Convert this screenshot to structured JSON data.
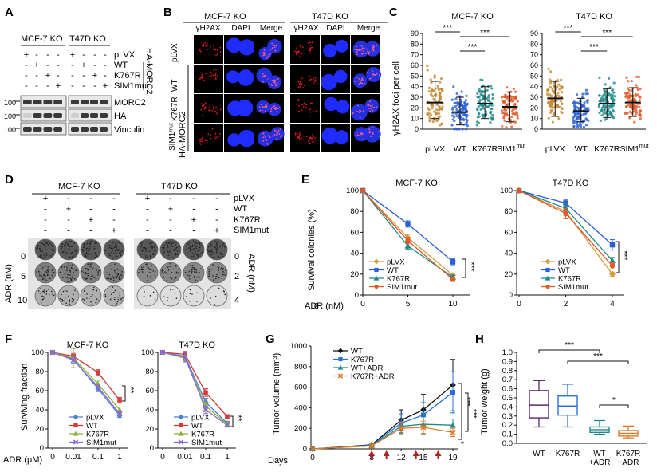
{
  "panels": {
    "A": {
      "letter": "A",
      "groups": [
        "MCF-7 KO",
        "T47D KO"
      ],
      "rows": [
        "pLVX",
        "WT",
        "K767R",
        "SIM1mut"
      ],
      "signs": [
        [
          "+",
          "-",
          "-",
          "-",
          "+",
          "-",
          "-",
          "-"
        ],
        [
          "-",
          "+",
          "-",
          "-",
          "-",
          "+",
          "-",
          "-"
        ],
        [
          "-",
          "-",
          "+",
          "-",
          "-",
          "-",
          "+",
          "-"
        ],
        [
          "-",
          "-",
          "-",
          "+",
          "-",
          "-",
          "-",
          "+"
        ]
      ],
      "bracket_label": "HA-MORC2",
      "blots": [
        "MORC2",
        "HA",
        "Vinculin"
      ],
      "mw": [
        "100",
        "100",
        "100"
      ]
    },
    "B": {
      "letter": "B",
      "groups": [
        "MCF-7 KO",
        "T47D KO"
      ],
      "channels": [
        "γH2AX",
        "DAPI",
        "Merge",
        "γH2AX",
        "DAPI",
        "Merge"
      ],
      "rows": [
        "pLVX",
        "WT",
        "K767R",
        "SIM1mut"
      ],
      "bracket_label": "HA-MORC2"
    },
    "C": {
      "letter": "C",
      "ylabel": "γH2AX foci per cell",
      "subplots": [
        {
          "title": "MCF-7 KO",
          "categories": [
            "pLVX",
            "WT",
            "K767R",
            "SIM1mut"
          ],
          "sig": [
            "***",
            "***",
            "***"
          ]
        },
        {
          "title": "T47D KO",
          "categories": [
            "pLVX",
            "WT",
            "K767R",
            "SIM1mut"
          ],
          "sig": [
            "***",
            "***",
            "***"
          ]
        }
      ],
      "yticks": [
        "0",
        "10",
        "20",
        "30",
        "40",
        "50",
        "60",
        "70",
        "80",
        "90"
      ]
    },
    "D": {
      "letter": "D",
      "groups": [
        "MCF-7 KO",
        "T47D KO"
      ],
      "rows": [
        "pLVX",
        "WT",
        "K767R",
        "SIM1mut"
      ],
      "signs": [
        [
          "+",
          "-",
          "-",
          "-",
          "+",
          "-",
          "-",
          "-"
        ],
        [
          "-",
          "+",
          "-",
          "-",
          "-",
          "+",
          "-",
          "-"
        ],
        [
          "-",
          "-",
          "+",
          "-",
          "-",
          "-",
          "+",
          "-"
        ],
        [
          "-",
          "-",
          "-",
          "+",
          "-",
          "-",
          "-",
          "+"
        ]
      ],
      "left_label": "ADR (nM)",
      "right_label": "ADR (nM)",
      "left_doses": [
        "0",
        "5",
        "10"
      ],
      "right_doses": [
        "0",
        "2",
        "4"
      ]
    },
    "E": {
      "letter": "E",
      "xlabel": "ADR (nM)",
      "ylabel": "Survival colonies (%)",
      "sig": "***"
    },
    "F": {
      "letter": "F",
      "xlabel": "ADR (μM)",
      "ylabel": "Surviving fraction",
      "sig": "**"
    },
    "G": {
      "letter": "G",
      "ylabel": "Tumor volume (mm³)",
      "xlabel": "Days",
      "sig": [
        "***",
        "***",
        "*"
      ]
    },
    "H": {
      "letter": "H",
      "ylabel": "Tumor weight (g)",
      "categories": [
        "WT",
        "K767R",
        "WT\n+ADR",
        "K767R\n+ADR"
      ],
      "sig": [
        "***",
        "***",
        "*"
      ]
    }
  },
  "chart_data": [
    {
      "id": "C-left",
      "type": "scatter",
      "title": "MCF-7 KO",
      "ylabel": "γH2AX foci per cell",
      "categories": [
        "pLVX",
        "WT",
        "K767R",
        "SIM1mut"
      ],
      "mean": [
        25,
        16,
        24,
        21
      ],
      "sd_low": [
        10,
        4,
        10,
        7
      ],
      "sd_high": [
        45,
        30,
        40,
        35
      ],
      "range": [
        [
          0,
          88
        ],
        [
          0,
          60
        ],
        [
          2,
          73
        ],
        [
          0,
          58
        ]
      ],
      "ylim": [
        0,
        90
      ],
      "colors": [
        "#c88a33",
        "#2b5fd6",
        "#1e8a8a",
        "#e05a28"
      ]
    },
    {
      "id": "C-right",
      "type": "scatter",
      "title": "T47D KO",
      "categories": [
        "pLVX",
        "WT",
        "K767R",
        "SIM1mut"
      ],
      "mean": [
        29,
        17,
        24,
        25
      ],
      "sd_low": [
        12,
        7,
        11,
        12
      ],
      "sd_high": [
        45,
        29,
        38,
        39
      ],
      "range": [
        [
          3,
          72
        ],
        [
          2,
          62
        ],
        [
          2,
          72
        ],
        [
          3,
          66
        ]
      ],
      "ylim": [
        0,
        90
      ],
      "colors": [
        "#c88a33",
        "#2b5fd6",
        "#1e8a8a",
        "#e05a28"
      ]
    },
    {
      "id": "E-left",
      "type": "line",
      "title": "MCF-7 KO",
      "xlabel": "ADR (nM)",
      "ylabel": "Survival colonies (%)",
      "x": [
        0,
        5,
        10
      ],
      "xlim": [
        0,
        10
      ],
      "ylim": [
        0,
        100
      ],
      "xticks": [
        0,
        5,
        10
      ],
      "yticks": [
        0,
        20,
        40,
        60,
        80,
        100
      ],
      "series": [
        {
          "name": "pLVX",
          "values": [
            100,
            55,
            19
          ],
          "err": [
            1,
            3,
            2
          ],
          "color": "#d69a3a",
          "marker": "diamond"
        },
        {
          "name": "WT",
          "values": [
            100,
            68,
            32
          ],
          "err": [
            1,
            3,
            3
          ],
          "color": "#2b5fd6",
          "marker": "square"
        },
        {
          "name": "K767R",
          "values": [
            100,
            47,
            17
          ],
          "err": [
            1,
            3,
            2
          ],
          "color": "#1e8a8a",
          "marker": "triangle"
        },
        {
          "name": "SIM1mut",
          "values": [
            100,
            52,
            15
          ],
          "err": [
            1,
            3,
            2
          ],
          "color": "#e05a28",
          "marker": "circle"
        }
      ]
    },
    {
      "id": "E-right",
      "type": "line",
      "title": "T47D KO",
      "x": [
        0,
        2,
        4
      ],
      "xlim": [
        0,
        4
      ],
      "ylim": [
        0,
        100
      ],
      "xticks": [
        0,
        2,
        4
      ],
      "yticks": [
        0,
        20,
        40,
        60,
        80,
        100
      ],
      "series": [
        {
          "name": "pLVX",
          "values": [
            100,
            80,
            20
          ],
          "err": [
            1,
            4,
            2
          ],
          "color": "#d69a3a",
          "marker": "diamond"
        },
        {
          "name": "WT",
          "values": [
            100,
            88,
            48
          ],
          "err": [
            1,
            3,
            5
          ],
          "color": "#2b5fd6",
          "marker": "square"
        },
        {
          "name": "K767R",
          "values": [
            100,
            83,
            33
          ],
          "err": [
            1,
            4,
            3
          ],
          "color": "#1e8a8a",
          "marker": "triangle"
        },
        {
          "name": "SIM1mut",
          "values": [
            100,
            78,
            28
          ],
          "err": [
            1,
            5,
            3
          ],
          "color": "#e05a28",
          "marker": "circle"
        }
      ]
    },
    {
      "id": "F-left",
      "type": "line",
      "title": "MCF-7 KO",
      "xlabel": "ADR (μM)",
      "ylabel": "Surviving fraction",
      "x": [
        "0",
        "0.01",
        "0.1",
        "1"
      ],
      "ylim": [
        0,
        100
      ],
      "yticks": [
        0,
        20,
        40,
        60,
        80,
        100
      ],
      "series": [
        {
          "name": "pLVX",
          "values": [
            100,
            93,
            62,
            34
          ],
          "err": [
            1,
            4,
            3,
            2
          ],
          "color": "#4a7fd0",
          "marker": "diamond"
        },
        {
          "name": "WT",
          "values": [
            100,
            96,
            79,
            50
          ],
          "err": [
            1,
            3,
            3,
            3
          ],
          "color": "#d23a3a",
          "marker": "square"
        },
        {
          "name": "K767R",
          "values": [
            100,
            94,
            67,
            40
          ],
          "err": [
            1,
            10,
            3,
            3
          ],
          "color": "#8ab03a",
          "marker": "triangle"
        },
        {
          "name": "SIM1mut",
          "values": [
            100,
            92,
            64,
            36
          ],
          "err": [
            1,
            4,
            3,
            2
          ],
          "color": "#8a6ad0",
          "marker": "x"
        }
      ]
    },
    {
      "id": "F-right",
      "type": "line",
      "title": "T47D KO",
      "x": [
        "0",
        "0.01",
        "0.1",
        "1"
      ],
      "ylim": [
        0,
        100
      ],
      "yticks": [
        0,
        20,
        40,
        60,
        80,
        100
      ],
      "series": [
        {
          "name": "pLVX",
          "values": [
            100,
            96,
            48,
            26
          ],
          "err": [
            1,
            5,
            4,
            2
          ],
          "color": "#4a7fd0",
          "marker": "diamond"
        },
        {
          "name": "WT",
          "values": [
            100,
            98,
            58,
            33
          ],
          "err": [
            1,
            3,
            4,
            2
          ],
          "color": "#d23a3a",
          "marker": "square"
        },
        {
          "name": "K767R",
          "values": [
            100,
            94,
            44,
            25
          ],
          "err": [
            1,
            3,
            4,
            2
          ],
          "color": "#8ab03a",
          "marker": "triangle"
        },
        {
          "name": "SIM1mut",
          "values": [
            100,
            95,
            40,
            24
          ],
          "err": [
            1,
            5,
            4,
            2
          ],
          "color": "#8a6ad0",
          "marker": "x"
        }
      ]
    },
    {
      "id": "G",
      "type": "line",
      "xlabel": "Days",
      "ylabel": "Tumor volume (mm³)",
      "x": [
        0,
        8,
        12,
        15,
        19
      ],
      "xlim": [
        0,
        19
      ],
      "ylim": [
        0,
        1000
      ],
      "xticks": [
        0,
        8,
        12,
        15,
        19
      ],
      "yticks": [
        0,
        200,
        400,
        600,
        800,
        1000
      ],
      "treatment_days": [
        8,
        10,
        14,
        17
      ],
      "series": [
        {
          "name": "WT",
          "values": [
            0,
            40,
            280,
            380,
            620
          ],
          "err": [
            0,
            15,
            100,
            150,
            250
          ],
          "color": "#111111",
          "marker": "diamond"
        },
        {
          "name": "K767R",
          "values": [
            0,
            35,
            250,
            330,
            550
          ],
          "err": [
            0,
            15,
            90,
            120,
            200
          ],
          "color": "#2b6fd6",
          "marker": "square"
        },
        {
          "name": "WT+ADR",
          "values": [
            0,
            30,
            220,
            240,
            230
          ],
          "err": [
            0,
            15,
            70,
            100,
            60
          ],
          "color": "#1e8a8a",
          "marker": "triangle"
        },
        {
          "name": "K767R+ADR",
          "values": [
            0,
            30,
            200,
            210,
            160
          ],
          "err": [
            0,
            15,
            60,
            60,
            40
          ],
          "color": "#e07a28",
          "marker": "x"
        }
      ]
    },
    {
      "id": "H",
      "type": "box",
      "ylabel": "Tumor weight (g)",
      "ylim": [
        0,
        1
      ],
      "yticks": [
        0.0,
        0.1,
        0.2,
        0.3,
        0.4,
        0.5,
        0.6,
        0.7,
        0.8,
        0.9,
        1.0
      ],
      "categories": [
        "WT",
        "K767R",
        "WT\n+ADR",
        "K767R\n+ADR"
      ],
      "boxes": [
        {
          "min": 0.18,
          "q1": 0.28,
          "median": 0.42,
          "q3": 0.58,
          "max": 0.69,
          "color": "#5a2a6a"
        },
        {
          "min": 0.18,
          "q1": 0.31,
          "median": 0.41,
          "q3": 0.52,
          "max": 0.65,
          "color": "#2b6fd6"
        },
        {
          "min": 0.1,
          "q1": 0.12,
          "median": 0.15,
          "q3": 0.18,
          "max": 0.25,
          "color": "#1e8a8a"
        },
        {
          "min": 0.06,
          "q1": 0.08,
          "median": 0.11,
          "q3": 0.14,
          "max": 0.19,
          "color": "#e07a28"
        }
      ]
    }
  ]
}
